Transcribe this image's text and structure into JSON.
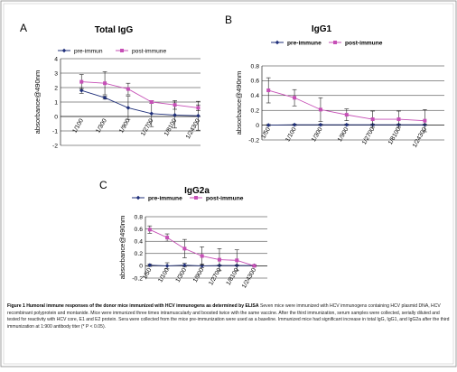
{
  "caption": {
    "lead": "Figure 1 Humoral immune responses of the donor mice immunized with HCV immunogens as determined by ELISA",
    "body": "Seven mice were immunized with HCV immunogens containing HCV plasmid DNA, HCV recombinant polyprotein and montanide. Mice were immunized three times intramuscularly and boosted twice with the same vaccine. After the third immunization, serum samples were collected, serially diluted and tested for reactivity with HCV core, E1 and E2 protein. Sera were collected from the mice pre-immunization were used as a baseline. Immunized mice had significant increase in total IgG, IgG1, and IgG2a after the third immunization at 1:900 antibody titer (* P < 0.05)."
  },
  "colors": {
    "pre": "#1f2f7a",
    "post": "#c64fb6"
  },
  "chart_data": [
    {
      "panel": "A",
      "type": "line",
      "title": "Total IgG",
      "ylabel": "absorbance@490nm",
      "xlabel": "",
      "ylim": [
        -2,
        4
      ],
      "yticks": [
        "-2",
        "-1",
        "0",
        "1",
        "2",
        "3",
        "4"
      ],
      "categories": [
        "1/100",
        "1/300",
        "1/900",
        "1/2700",
        "1/8100",
        "1/24300"
      ],
      "legend": "top",
      "grid": true,
      "series": [
        {
          "name": "pre-immun",
          "values": [
            1.8,
            1.3,
            0.6,
            0.2,
            0.1,
            0.05
          ],
          "errors": [
            0.2,
            0.1,
            0.8,
            0.9,
            0.9,
            1.0
          ]
        },
        {
          "name": "post-immune",
          "values": [
            2.4,
            2.3,
            1.9,
            1.0,
            0.8,
            0.6
          ],
          "errors": [
            0.5,
            0.8,
            0.4,
            0.1,
            0.3,
            0.2
          ]
        }
      ]
    },
    {
      "panel": "B",
      "type": "line",
      "title": "IgG1",
      "ylabel": "absorbance@490nm",
      "xlabel": "",
      "ylim": [
        -0.2,
        0.8
      ],
      "yticks": [
        "-0.2",
        "0",
        "0.2",
        "0.4",
        "0.6",
        "0.8"
      ],
      "categories": [
        "1/50",
        "1/100",
        "1/300",
        "1/900",
        "1/2700",
        "1/8100",
        "1/24300"
      ],
      "legend": "top",
      "grid": true,
      "series": [
        {
          "name": "pre-immune",
          "values": [
            0.0,
            0.005,
            0.005,
            0.005,
            0.005,
            0.005,
            0.005
          ],
          "errors": [
            0.01,
            0.01,
            0.01,
            0.01,
            0.01,
            0.01,
            0.01
          ]
        },
        {
          "name": "post-immune",
          "values": [
            0.47,
            0.37,
            0.21,
            0.14,
            0.08,
            0.08,
            0.06
          ],
          "errors": [
            0.17,
            0.11,
            0.16,
            0.08,
            0.11,
            0.11,
            0.15
          ]
        }
      ]
    },
    {
      "panel": "C",
      "type": "line",
      "title": "IgG2a",
      "ylabel": "absorbance@490nm",
      "xlabel": "",
      "ylim": [
        -0.2,
        0.8
      ],
      "yticks": [
        "-0.2",
        "0",
        "0.2",
        "0.4",
        "0.6",
        "0.8"
      ],
      "categories": [
        "1/50",
        "1/100",
        "1/300",
        "1/900",
        "1/2700",
        "1/8100",
        "1/24300"
      ],
      "legend": "top",
      "grid": true,
      "series": [
        {
          "name": "pre-immune",
          "values": [
            0.01,
            0.0,
            0.01,
            0.0,
            0.005,
            0.005,
            0.005
          ],
          "errors": [
            0.02,
            0.05,
            0.03,
            0.03,
            0.01,
            0.01,
            0.01
          ]
        },
        {
          "name": "post-immune",
          "values": [
            0.59,
            0.46,
            0.28,
            0.16,
            0.1,
            0.09,
            0.0
          ],
          "errors": [
            0.06,
            0.06,
            0.15,
            0.15,
            0.18,
            0.17,
            0.01
          ]
        }
      ]
    }
  ]
}
